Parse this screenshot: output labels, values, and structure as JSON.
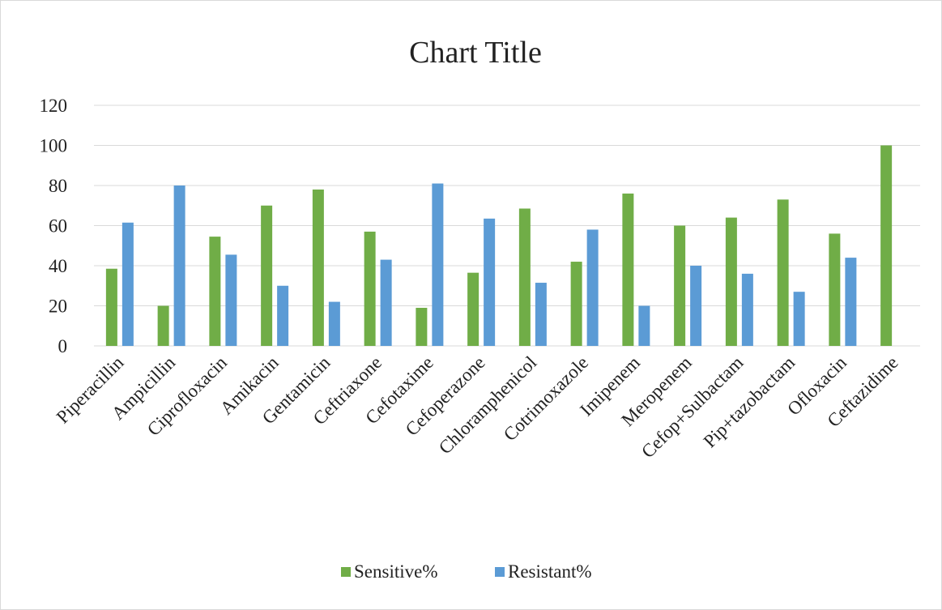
{
  "chart_data": {
    "type": "bar",
    "title": "Chart Title",
    "xlabel": "",
    "ylabel": "",
    "ylim": [
      0,
      120
    ],
    "yticks": [
      0,
      20,
      40,
      60,
      80,
      100,
      120
    ],
    "grid": true,
    "legend_position": "bottom",
    "categories": [
      "Piperacillin",
      "Ampicillin",
      "Ciprofloxacin",
      "Amikacin",
      "Gentamicin",
      "Ceftriaxone",
      "Cefotaxime",
      "Cefoperazone",
      "Chloramphenicol",
      "Cotrimoxazole",
      "Imipenem",
      "Meropenem",
      "Cefop+Sulbactam",
      "Pip+tazobactam",
      "Ofloxacin",
      "Ceftazidime"
    ],
    "series": [
      {
        "name": "Sensitive%",
        "color": "#70ad47",
        "values": [
          38.5,
          20,
          54.5,
          70,
          78,
          57,
          19,
          36.5,
          68.5,
          42,
          76,
          60,
          64,
          73,
          56,
          100
        ]
      },
      {
        "name": "Resistant%",
        "color": "#5b9bd5",
        "values": [
          61.5,
          80,
          45.5,
          30,
          22,
          43,
          81,
          63.5,
          31.5,
          58,
          20,
          40,
          36,
          27,
          44,
          0
        ]
      }
    ]
  }
}
